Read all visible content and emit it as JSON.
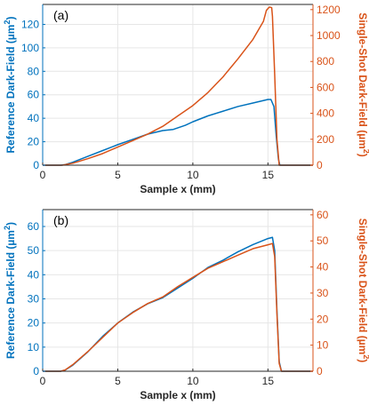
{
  "colors": {
    "reference": "#0072BD",
    "single_shot": "#D95319",
    "grid": "#e6e6e6",
    "axis": "#262626"
  },
  "chart_data": [
    {
      "type": "line",
      "panel_label": "(a)",
      "xlabel": "Sample x (mm)",
      "ylabel_left_main": "Reference Dark-Field (µm",
      "ylabel_left_sup": "2",
      "ylabel_left_end": ")",
      "ylabel_right_main": "Single-Shot Dark-Field (µm",
      "ylabel_right_sup": "2",
      "ylabel_right_end": ")",
      "xlim": [
        0,
        18
      ],
      "ylim_left": [
        0,
        137
      ],
      "ylim_right": [
        0,
        1240
      ],
      "xticks": [
        0,
        5,
        10,
        15
      ],
      "yticks_left": [
        0,
        20,
        40,
        60,
        80,
        100,
        120
      ],
      "yticks_right": [
        0,
        200,
        400,
        600,
        800,
        1000,
        1200
      ],
      "grid": true,
      "series": [
        {
          "axis": "left",
          "color": "#0072BD",
          "points": [
            [
              0,
              0
            ],
            [
              1.2,
              0
            ],
            [
              1.5,
              0.5
            ],
            [
              2,
              2.5
            ],
            [
              3,
              7.5
            ],
            [
              4,
              12.5
            ],
            [
              5,
              17.5
            ],
            [
              6,
              22
            ],
            [
              7,
              26.5
            ],
            [
              8,
              29.5
            ],
            [
              8.7,
              30.5
            ],
            [
              9.5,
              34
            ],
            [
              10,
              37
            ],
            [
              11,
              42
            ],
            [
              12,
              46
            ],
            [
              13,
              50
            ],
            [
              14,
              53
            ],
            [
              15,
              56
            ],
            [
              15.2,
              56
            ],
            [
              15.4,
              50
            ],
            [
              15.55,
              25
            ],
            [
              15.7,
              5
            ],
            [
              15.8,
              0
            ],
            [
              18,
              0
            ]
          ]
        },
        {
          "axis": "right",
          "color": "#D95319",
          "points": [
            [
              0,
              0
            ],
            [
              1.3,
              0
            ],
            [
              2,
              15
            ],
            [
              3,
              50
            ],
            [
              4,
              90
            ],
            [
              5,
              140
            ],
            [
              6,
              190
            ],
            [
              7,
              240
            ],
            [
              8,
              300
            ],
            [
              9,
              380
            ],
            [
              10,
              460
            ],
            [
              11,
              560
            ],
            [
              12,
              680
            ],
            [
              13,
              820
            ],
            [
              14,
              970
            ],
            [
              14.7,
              1110
            ],
            [
              14.9,
              1195
            ],
            [
              15.1,
              1220
            ],
            [
              15.25,
              1215
            ],
            [
              15.3,
              1150
            ],
            [
              15.45,
              700
            ],
            [
              15.6,
              200
            ],
            [
              15.75,
              0
            ],
            [
              18,
              0
            ]
          ]
        }
      ]
    },
    {
      "type": "line",
      "panel_label": "(b)",
      "xlabel": "Sample x (mm)",
      "ylabel_left_main": "Reference Dark-Field (µm",
      "ylabel_left_sup": "2",
      "ylabel_left_end": ")",
      "ylabel_right_main": "Single-Shot Dark-Field (µm",
      "ylabel_right_sup": "2",
      "ylabel_right_end": ")",
      "xlim": [
        0,
        18
      ],
      "ylim_left": [
        0,
        67
      ],
      "ylim_right": [
        0,
        62
      ],
      "xticks": [
        0,
        5,
        10,
        15
      ],
      "yticks_left": [
        0,
        10,
        20,
        30,
        40,
        50,
        60
      ],
      "yticks_right": [
        0,
        10,
        20,
        30,
        40,
        50,
        60
      ],
      "grid": true,
      "series": [
        {
          "axis": "left",
          "color": "#0072BD",
          "points": [
            [
              0,
              0
            ],
            [
              1.2,
              0
            ],
            [
              1.5,
              0.5
            ],
            [
              2,
              2.5
            ],
            [
              3,
              8
            ],
            [
              4,
              14.5
            ],
            [
              5,
              20
            ],
            [
              6,
              24.5
            ],
            [
              7,
              28
            ],
            [
              8,
              30.5
            ],
            [
              9,
              34.5
            ],
            [
              10,
              38.5
            ],
            [
              11,
              43
            ],
            [
              12,
              46
            ],
            [
              13,
              49.5
            ],
            [
              14,
              52.5
            ],
            [
              15,
              55
            ],
            [
              15.3,
              55.5
            ],
            [
              15.45,
              50
            ],
            [
              15.6,
              25
            ],
            [
              15.75,
              4
            ],
            [
              15.9,
              0
            ],
            [
              18,
              0
            ]
          ]
        },
        {
          "axis": "right",
          "color": "#D95319",
          "points": [
            [
              0,
              0
            ],
            [
              1.2,
              0
            ],
            [
              1.5,
              0.5
            ],
            [
              2,
              2.5
            ],
            [
              3,
              7.5
            ],
            [
              4,
              13
            ],
            [
              5,
              18.5
            ],
            [
              6,
              22.5
            ],
            [
              7,
              26
            ],
            [
              8,
              28.5
            ],
            [
              9,
              32.5
            ],
            [
              10,
              36
            ],
            [
              11,
              39.5
            ],
            [
              12,
              42
            ],
            [
              13,
              44.5
            ],
            [
              14,
              47
            ],
            [
              15,
              48.5
            ],
            [
              15.3,
              49
            ],
            [
              15.45,
              44
            ],
            [
              15.6,
              22
            ],
            [
              15.75,
              3
            ],
            [
              15.9,
              0
            ],
            [
              18,
              0
            ]
          ]
        }
      ]
    }
  ]
}
